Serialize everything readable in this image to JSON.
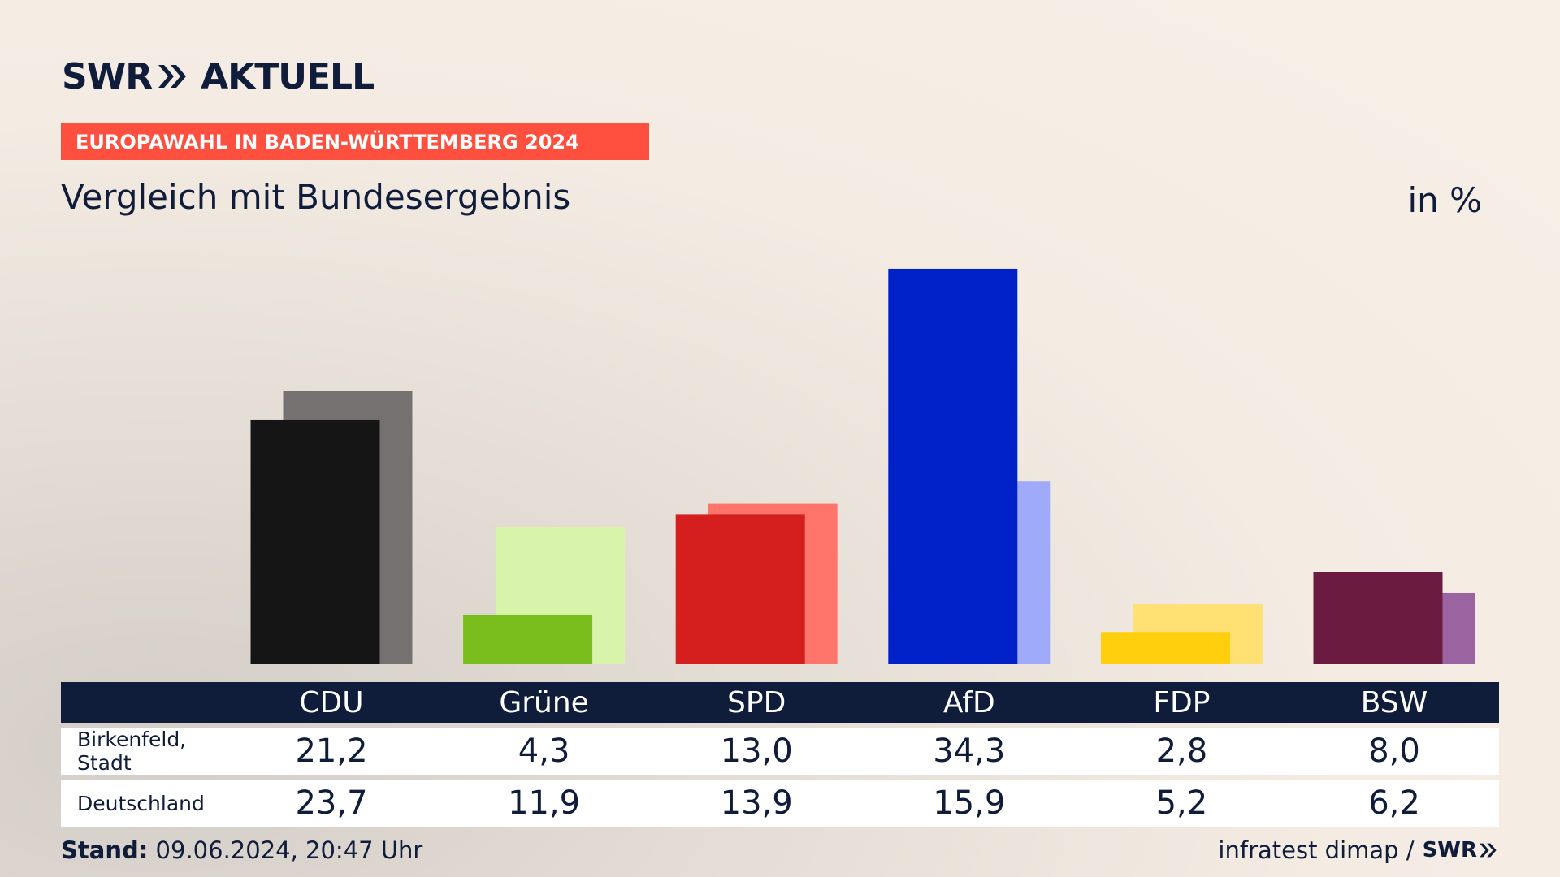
{
  "header": {
    "logo_left": "SWR",
    "logo_right": "AKTUELL",
    "banner": "EUROPAWAHL IN BADEN-WÜRTTEMBERG 2024",
    "subtitle": "Vergleich mit Bundesergebnis",
    "unit": "in %"
  },
  "colors": {
    "navy": "#0f1c3a",
    "banner": "#ff4f3f"
  },
  "chart_data": {
    "type": "bar",
    "categories": [
      "CDU",
      "Grüne",
      "SPD",
      "AfD",
      "FDP",
      "BSW"
    ],
    "series": [
      {
        "name": "Birkenfeld, Stadt",
        "values": [
          21.2,
          4.3,
          13.0,
          34.3,
          2.8,
          8.0
        ],
        "colors": [
          "#151515",
          "#79bd1d",
          "#d51f1f",
          "#0021c8",
          "#ffcf0d",
          "#6b1a40"
        ]
      },
      {
        "name": "Deutschland",
        "values": [
          23.7,
          11.9,
          13.9,
          15.9,
          5.2,
          6.2
        ],
        "colors": [
          "#747170",
          "#d8f4aa",
          "#ff756c",
          "#9faaf9",
          "#ffe073",
          "#9a64a0"
        ]
      }
    ],
    "value_labels": [
      [
        "21,2",
        "4,3",
        "13,0",
        "34,3",
        "2,8",
        "8,0"
      ],
      [
        "23,7",
        "11,9",
        "13,9",
        "15,9",
        "5,2",
        "6,2"
      ]
    ]
  },
  "footer": {
    "stand_label": "Stand:",
    "stand_value": "09.06.2024, 20:47 Uhr",
    "source": "infratest dimap /",
    "source_logo": "SWR"
  }
}
